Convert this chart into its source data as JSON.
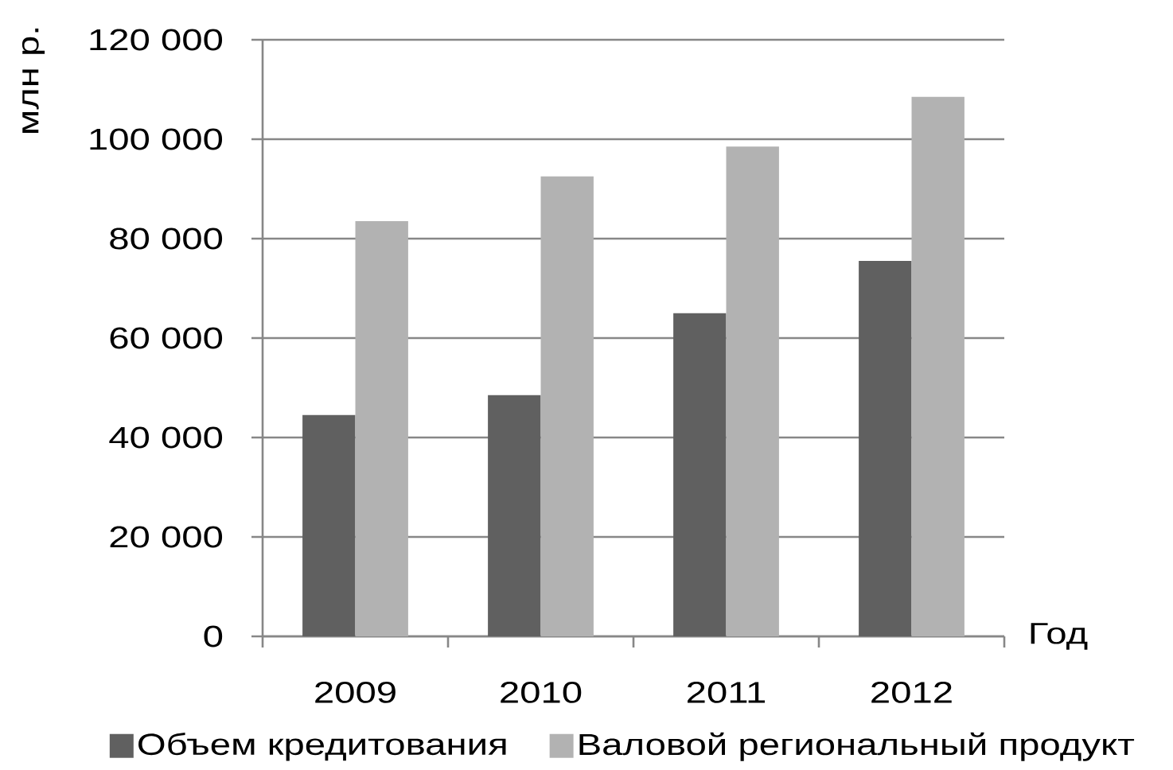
{
  "chart_data": {
    "type": "bar",
    "xlabel": "Год",
    "ylabel": "млн р.",
    "categories": [
      "2009",
      "2010",
      "2011",
      "2012"
    ],
    "series": [
      {
        "name": "Объем кредитования",
        "color": "#606060",
        "values": [
          44500,
          48500,
          65000,
          75500
        ]
      },
      {
        "name": "Валовой региональный продукт",
        "color": "#b2b2b2",
        "values": [
          83500,
          92500,
          98500,
          108500
        ]
      }
    ],
    "ylim": [
      0,
      120000
    ],
    "yticks": [
      0,
      {
        "value": 20000,
        "label": "20 000"
      },
      {
        "value": 40000,
        "label": "40 000"
      },
      {
        "value": 60000,
        "label": "60 000"
      },
      {
        "value": 80000,
        "label": "80 000"
      },
      {
        "value": 100000,
        "label": "100 000"
      },
      {
        "value": 120000,
        "label": "120 000"
      }
    ],
    "grid": "y",
    "legend": "bottom"
  }
}
